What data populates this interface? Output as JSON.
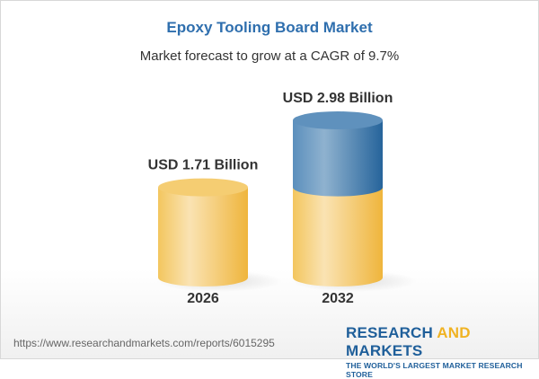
{
  "title": "Epoxy Tooling Board Market",
  "subtitle": "Market forecast to grow at a CAGR of 9.7%",
  "chart_data": {
    "type": "bar",
    "style": "3d-cylinder",
    "categories": [
      "2026",
      "2032"
    ],
    "values": [
      1.71,
      2.98
    ],
    "unit": "USD Billion",
    "data_labels": [
      "USD 1.71 Billion",
      "USD 2.98 Billion"
    ],
    "colors": {
      "base": "#f2c14e",
      "growth": "#3f7bb0"
    },
    "grid": false,
    "axes_visible": false
  },
  "footer": {
    "url": "https://www.researchandmarkets.com/reports/6015295",
    "logo_part1": "RESEARCH ",
    "logo_part2": "AND",
    "logo_part3": " MARKETS",
    "tagline": "THE WORLD'S LARGEST MARKET RESEARCH STORE"
  }
}
